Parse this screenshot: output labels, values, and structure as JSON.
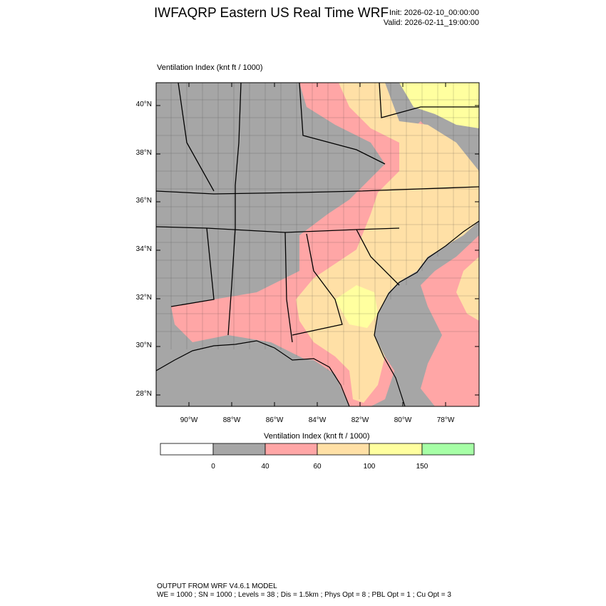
{
  "header": {
    "title": "IWFAQRP Eastern US Real Time WRF",
    "init": "Init: 2026-02-10_00:00:00",
    "valid": "Valid: 2026-02-11_19:00:00"
  },
  "map": {
    "field_label": "Ventilation Index   (knt ft / 1000)",
    "lat_labels": [
      "40°N",
      "38°N",
      "36°N",
      "34°N",
      "32°N",
      "30°N",
      "28°N"
    ],
    "lon_labels": [
      "90°W",
      "88°W",
      "86°W",
      "84°W",
      "82°W",
      "80°W",
      "78°W"
    ],
    "extent": {
      "lon_min": -91.6,
      "lon_max": -76.6,
      "lat_min": 27.5,
      "lat_max": 40.9
    }
  },
  "colorbar": {
    "title": "Ventilation Index  (knt ft / 1000)",
    "tick_labels": [
      "0",
      "40",
      "60",
      "100",
      "150"
    ],
    "colors": [
      "#ffffff",
      "#a6a6a6",
      "#ffa6a6",
      "#ffe0a6",
      "#ffff9f",
      "#a6ffa6"
    ]
  },
  "palette": {
    "gray": "#a6a6a6",
    "pink": "#ffa6a6",
    "peach": "#ffe0a6",
    "yellow": "#ffff9f"
  },
  "footer": {
    "line1": "OUTPUT FROM WRF V4.6.1 MODEL",
    "line2": "WE = 1000 ; SN = 1000 ; Levels = 38 ; Dis = 1.5km ; Phys Opt = 8 ; PBL Opt = 1 ; Cu Opt = 3"
  }
}
